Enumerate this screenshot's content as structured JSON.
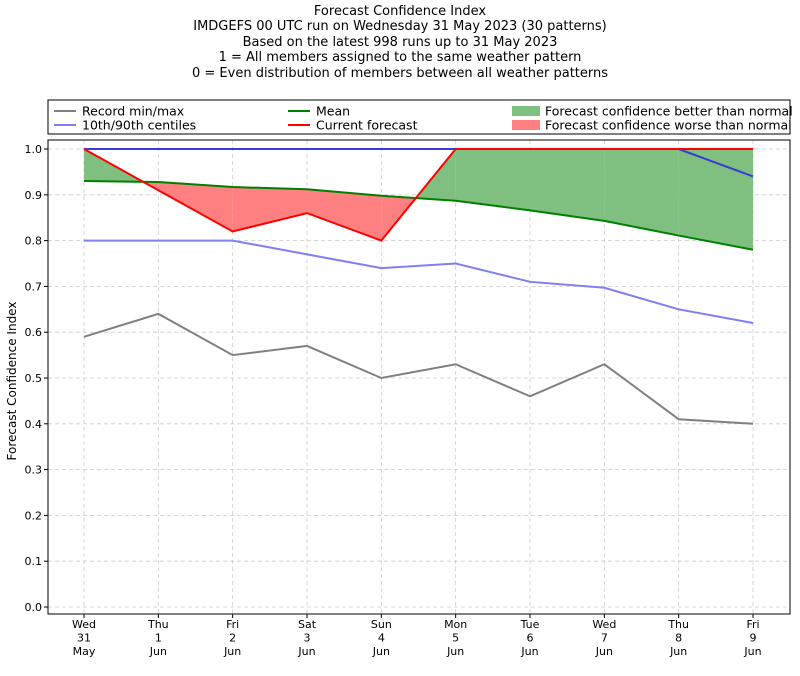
{
  "chart_data": {
    "type": "line",
    "title_lines": [
      "Forecast Confidence Index",
      "IMDGEFS 00 UTC run on Wednesday 31 May 2023 (30 patterns)",
      "Based on the latest 998 runs up to 31 May 2023",
      "1 = All members assigned to the same weather pattern",
      "0 = Even distribution of members between all weather patterns"
    ],
    "ylabel": "Forecast Confidence Index",
    "xlabel": "",
    "ylim": [
      0,
      1
    ],
    "yticks": [
      "0.0",
      "0.1",
      "0.2",
      "0.3",
      "0.4",
      "0.5",
      "0.6",
      "0.7",
      "0.8",
      "0.9",
      "1.0"
    ],
    "categories": [
      [
        "Wed",
        "31",
        "May"
      ],
      [
        "Thu",
        "1",
        "Jun"
      ],
      [
        "Fri",
        "2",
        "Jun"
      ],
      [
        "Sat",
        "3",
        "Jun"
      ],
      [
        "Sun",
        "4",
        "Jun"
      ],
      [
        "Mon",
        "5",
        "Jun"
      ],
      [
        "Tue",
        "6",
        "Jun"
      ],
      [
        "Wed",
        "7",
        "Jun"
      ],
      [
        "Thu",
        "8",
        "Jun"
      ],
      [
        "Fri",
        "9",
        "Jun"
      ]
    ],
    "grid": true,
    "legend_position": "top (above plot, three columns)",
    "series": [
      {
        "name": "Record min/max",
        "color": "#808080",
        "values": [
          0.59,
          0.64,
          0.55,
          0.57,
          0.5,
          0.53,
          0.46,
          0.53,
          0.41,
          0.4
        ]
      },
      {
        "name": "Record min/max",
        "color": "#808080",
        "values": [
          1.0,
          1.0,
          1.0,
          1.0,
          1.0,
          1.0,
          1.0,
          1.0,
          1.0,
          1.0
        ],
        "legend": false
      },
      {
        "name": "10th/90th centiles",
        "color": "#7f7ff5",
        "values": [
          0.8,
          0.8,
          0.8,
          0.77,
          0.74,
          0.75,
          0.71,
          0.697,
          0.65,
          0.62
        ]
      },
      {
        "name": "10th/90th centiles",
        "color": "#3a3ad6",
        "values": [
          1.0,
          1.0,
          1.0,
          1.0,
          1.0,
          1.0,
          1.0,
          1.0,
          1.0,
          0.94
        ],
        "legend": false
      },
      {
        "name": "Mean",
        "color": "#008000",
        "values": [
          0.93,
          0.928,
          0.917,
          0.912,
          0.898,
          0.887,
          0.866,
          0.843,
          0.811,
          0.78
        ]
      },
      {
        "name": "Current forecast",
        "color": "#ff0000",
        "values": [
          1.0,
          0.91,
          0.82,
          0.86,
          0.8,
          1.0,
          1.0,
          1.0,
          1.0,
          1.0
        ]
      }
    ],
    "fills": [
      {
        "name": "Forecast confidence better than normal",
        "color": "#7fbf7f"
      },
      {
        "name": "Forecast confidence worse than normal",
        "color": "#ff8080"
      }
    ],
    "legend": [
      {
        "label": "Record min/max",
        "kind": "line",
        "color": "#808080"
      },
      {
        "label": "Mean",
        "kind": "line",
        "color": "#008000"
      },
      {
        "label": "Forecast confidence better than normal",
        "kind": "patch",
        "color": "#7fbf7f"
      },
      {
        "label": "10th/90th centiles",
        "kind": "line",
        "color": "#7f7ff5"
      },
      {
        "label": "Current forecast",
        "kind": "line",
        "color": "#ff0000"
      },
      {
        "label": "Forecast confidence worse than normal",
        "kind": "patch",
        "color": "#ff8080"
      }
    ]
  }
}
